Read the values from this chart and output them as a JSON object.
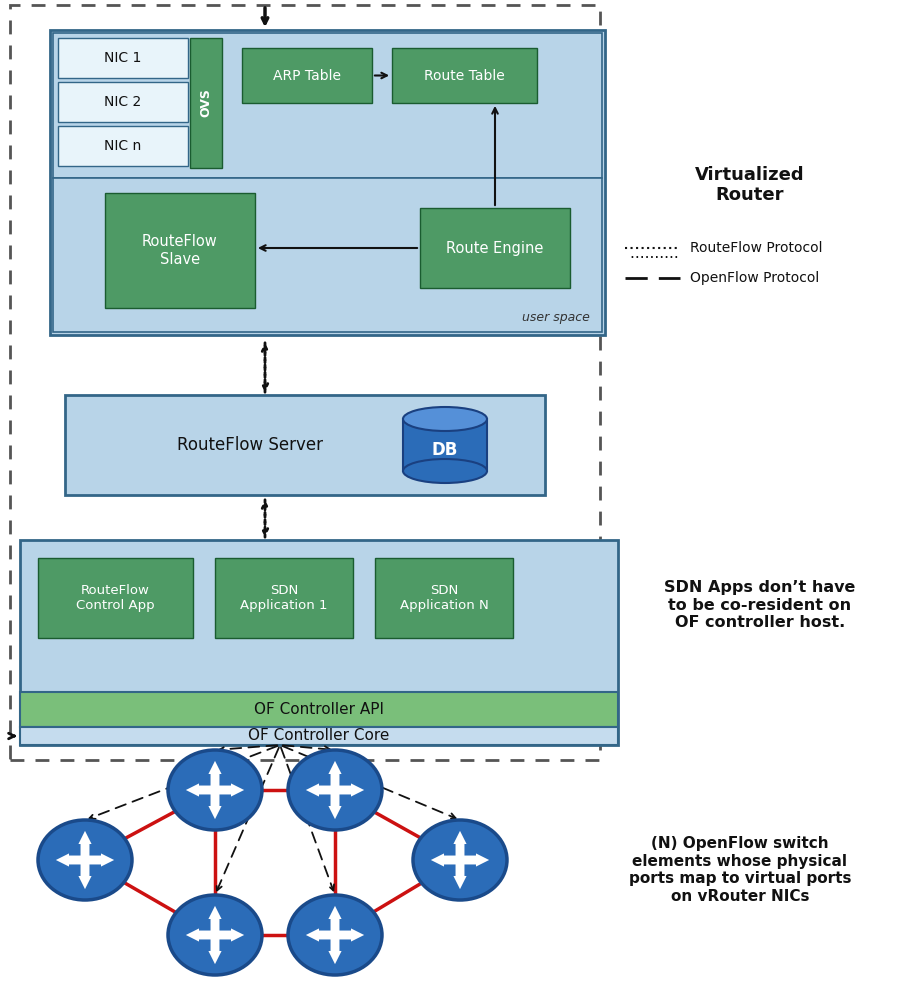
{
  "bg_color": "#ffffff",
  "blue_box": "#b8d4e8",
  "blue_box2": "#c5dcee",
  "green_box": "#4e9a65",
  "green_api": "#7abf7a",
  "switch_blue": "#2b6cb8",
  "switch_blue_dark": "#1a4a8a",
  "red_line": "#cc1111",
  "virt_router_label": "Virtualized\nRouter",
  "legend_dotted": "RouteFlow Protocol",
  "legend_dashed": "OpenFlow Protocol",
  "sdn_label": "SDN Apps don’t have\nto be co-resident on\nOF controller host.",
  "switch_label": "(N) OpenFlow switch\nelements whose physical\nports map to virtual ports\non vRouter NICs"
}
